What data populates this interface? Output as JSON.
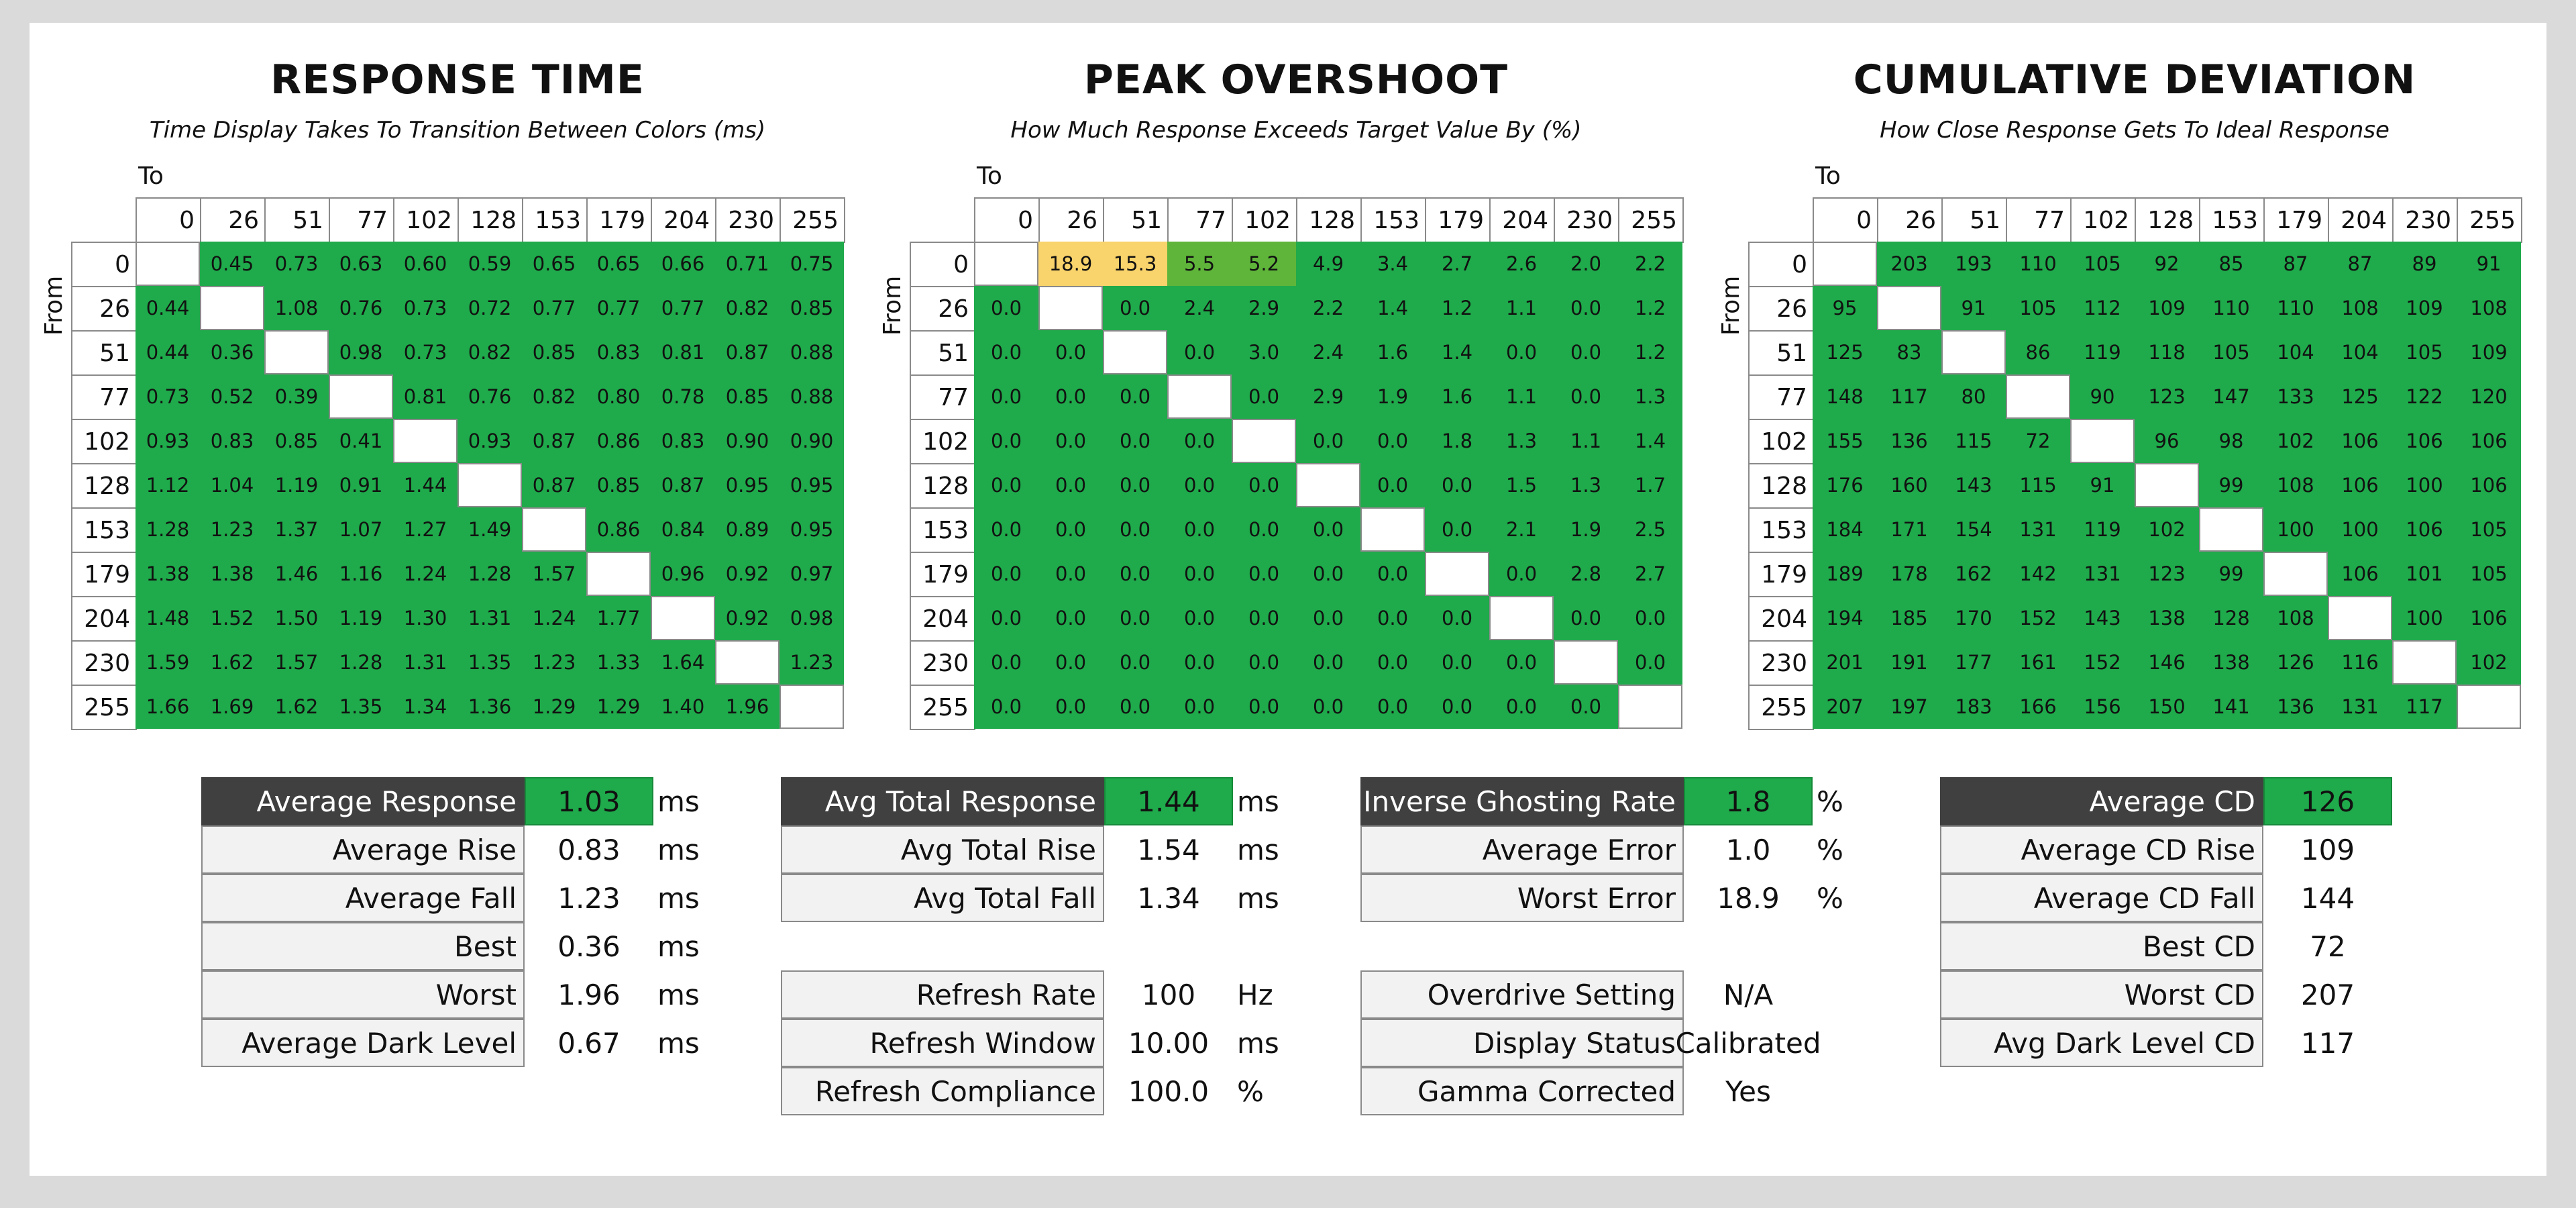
{
  "colors": {
    "green": "#1faa4b",
    "diagonal": "#ffffff",
    "orange": "#f7c04a",
    "light_orange": "#f9d36b",
    "label_dark": "#404040"
  },
  "chart_data": [
    {
      "type": "heatmap",
      "title": "RESPONSE TIME",
      "subtitle": "Time Display Takes To Transition Between Colors (ms)",
      "xlabel": "To",
      "ylabel": "From",
      "categories": [
        "0",
        "26",
        "51",
        "77",
        "102",
        "128",
        "153",
        "179",
        "204",
        "230",
        "255"
      ],
      "rows": [
        [
          "",
          "0.45",
          "0.73",
          "0.63",
          "0.60",
          "0.59",
          "0.65",
          "0.65",
          "0.66",
          "0.71",
          "0.75"
        ],
        [
          "0.44",
          "",
          "1.08",
          "0.76",
          "0.73",
          "0.72",
          "0.77",
          "0.77",
          "0.77",
          "0.82",
          "0.85"
        ],
        [
          "0.44",
          "0.36",
          "",
          "0.98",
          "0.73",
          "0.82",
          "0.85",
          "0.83",
          "0.81",
          "0.87",
          "0.88"
        ],
        [
          "0.73",
          "0.52",
          "0.39",
          "",
          "0.81",
          "0.76",
          "0.82",
          "0.80",
          "0.78",
          "0.85",
          "0.88"
        ],
        [
          "0.93",
          "0.83",
          "0.85",
          "0.41",
          "",
          "0.93",
          "0.87",
          "0.86",
          "0.83",
          "0.90",
          "0.90"
        ],
        [
          "1.12",
          "1.04",
          "1.19",
          "0.91",
          "1.44",
          "",
          "0.87",
          "0.85",
          "0.87",
          "0.95",
          "0.95"
        ],
        [
          "1.28",
          "1.23",
          "1.37",
          "1.07",
          "1.27",
          "1.49",
          "",
          "0.86",
          "0.84",
          "0.89",
          "0.95"
        ],
        [
          "1.38",
          "1.38",
          "1.46",
          "1.16",
          "1.24",
          "1.28",
          "1.57",
          "",
          "0.96",
          "0.92",
          "0.97"
        ],
        [
          "1.48",
          "1.52",
          "1.50",
          "1.19",
          "1.30",
          "1.31",
          "1.24",
          "1.77",
          "",
          "0.92",
          "0.98"
        ],
        [
          "1.59",
          "1.62",
          "1.57",
          "1.28",
          "1.31",
          "1.35",
          "1.23",
          "1.33",
          "1.64",
          "",
          "1.23"
        ],
        [
          "1.66",
          "1.69",
          "1.62",
          "1.35",
          "1.34",
          "1.36",
          "1.29",
          "1.29",
          "1.40",
          "1.96",
          ""
        ]
      ]
    },
    {
      "type": "heatmap",
      "title": "PEAK OVERSHOOT",
      "subtitle": "How Much Response Exceeds Target Value By (%)",
      "xlabel": "To",
      "ylabel": "From",
      "categories": [
        "0",
        "26",
        "51",
        "77",
        "102",
        "128",
        "153",
        "179",
        "204",
        "230",
        "255"
      ],
      "rows": [
        [
          "",
          "18.9",
          "15.3",
          "5.5",
          "5.2",
          "4.9",
          "3.4",
          "2.7",
          "2.6",
          "2.0",
          "2.2"
        ],
        [
          "0.0",
          "",
          "0.0",
          "2.4",
          "2.9",
          "2.2",
          "1.4",
          "1.2",
          "1.1",
          "0.0",
          "1.2"
        ],
        [
          "0.0",
          "0.0",
          "",
          "0.0",
          "3.0",
          "2.4",
          "1.6",
          "1.4",
          "0.0",
          "0.0",
          "1.2"
        ],
        [
          "0.0",
          "0.0",
          "0.0",
          "",
          "0.0",
          "2.9",
          "1.9",
          "1.6",
          "1.1",
          "0.0",
          "1.3"
        ],
        [
          "0.0",
          "0.0",
          "0.0",
          "0.0",
          "",
          "0.0",
          "0.0",
          "1.8",
          "1.3",
          "1.1",
          "1.4"
        ],
        [
          "0.0",
          "0.0",
          "0.0",
          "0.0",
          "0.0",
          "",
          "0.0",
          "0.0",
          "1.5",
          "1.3",
          "1.7"
        ],
        [
          "0.0",
          "0.0",
          "0.0",
          "0.0",
          "0.0",
          "0.0",
          "",
          "0.0",
          "2.1",
          "1.9",
          "2.5"
        ],
        [
          "0.0",
          "0.0",
          "0.0",
          "0.0",
          "0.0",
          "0.0",
          "0.0",
          "",
          "0.0",
          "2.8",
          "2.7"
        ],
        [
          "0.0",
          "0.0",
          "0.0",
          "0.0",
          "0.0",
          "0.0",
          "0.0",
          "0.0",
          "",
          "0.0",
          "0.0"
        ],
        [
          "0.0",
          "0.0",
          "0.0",
          "0.0",
          "0.0",
          "0.0",
          "0.0",
          "0.0",
          "0.0",
          "",
          "0.0"
        ],
        [
          "0.0",
          "0.0",
          "0.0",
          "0.0",
          "0.0",
          "0.0",
          "0.0",
          "0.0",
          "0.0",
          "0.0",
          ""
        ]
      ]
    },
    {
      "type": "heatmap",
      "title": "CUMULATIVE DEVIATION",
      "subtitle": "How Close Response Gets To Ideal Response",
      "xlabel": "To",
      "ylabel": "From",
      "categories": [
        "0",
        "26",
        "51",
        "77",
        "102",
        "128",
        "153",
        "179",
        "204",
        "230",
        "255"
      ],
      "rows": [
        [
          "",
          "203",
          "193",
          "110",
          "105",
          "92",
          "85",
          "87",
          "87",
          "89",
          "91"
        ],
        [
          "95",
          "",
          "91",
          "105",
          "112",
          "109",
          "110",
          "110",
          "108",
          "109",
          "108"
        ],
        [
          "125",
          "83",
          "",
          "86",
          "119",
          "118",
          "105",
          "104",
          "104",
          "105",
          "109"
        ],
        [
          "148",
          "117",
          "80",
          "",
          "90",
          "123",
          "147",
          "133",
          "125",
          "122",
          "120"
        ],
        [
          "155",
          "136",
          "115",
          "72",
          "",
          "96",
          "98",
          "102",
          "106",
          "106",
          "106"
        ],
        [
          "176",
          "160",
          "143",
          "115",
          "91",
          "",
          "99",
          "108",
          "106",
          "100",
          "106"
        ],
        [
          "184",
          "171",
          "154",
          "131",
          "119",
          "102",
          "",
          "100",
          "100",
          "106",
          "105"
        ],
        [
          "189",
          "178",
          "162",
          "142",
          "131",
          "123",
          "99",
          "",
          "106",
          "101",
          "105"
        ],
        [
          "194",
          "185",
          "170",
          "152",
          "143",
          "138",
          "128",
          "108",
          "",
          "100",
          "106"
        ],
        [
          "201",
          "191",
          "177",
          "161",
          "152",
          "146",
          "138",
          "126",
          "116",
          "",
          "102"
        ],
        [
          "207",
          "197",
          "183",
          "166",
          "156",
          "150",
          "141",
          "136",
          "131",
          "117",
          ""
        ]
      ]
    }
  ],
  "stats": [
    {
      "rows": [
        {
          "label": "Average Response",
          "value": "1.03",
          "unit": "ms",
          "highlight": true
        },
        {
          "label": "Average Rise",
          "value": "0.83",
          "unit": "ms"
        },
        {
          "label": "Average Fall",
          "value": "1.23",
          "unit": "ms"
        },
        {
          "label": "Best",
          "value": "0.36",
          "unit": "ms"
        },
        {
          "label": "Worst",
          "value": "1.96",
          "unit": "ms"
        },
        {
          "label": "Average Dark Level",
          "value": "0.67",
          "unit": "ms"
        }
      ]
    },
    {
      "rows": [
        {
          "label": "Avg Total Response",
          "value": "1.44",
          "unit": "ms",
          "highlight": true
        },
        {
          "label": "Avg Total Rise",
          "value": "1.54",
          "unit": "ms"
        },
        {
          "label": "Avg Total Fall",
          "value": "1.34",
          "unit": "ms"
        },
        null,
        {
          "label": "Refresh Rate",
          "value": "100",
          "unit": "Hz"
        },
        {
          "label": "Refresh Window",
          "value": "10.00",
          "unit": "ms"
        },
        {
          "label": "Refresh Compliance",
          "value": "100.0",
          "unit": "%"
        }
      ]
    },
    {
      "rows": [
        {
          "label": "Inverse Ghosting Rate",
          "value": "1.8",
          "unit": "%",
          "highlight": true
        },
        {
          "label": "Average Error",
          "value": "1.0",
          "unit": "%"
        },
        {
          "label": "Worst Error",
          "value": "18.9",
          "unit": "%"
        },
        null,
        {
          "label": "Overdrive Setting",
          "value": "N/A",
          "unit": ""
        },
        {
          "label": "Display Status",
          "value": "Calibrated",
          "unit": ""
        },
        {
          "label": "Gamma Corrected",
          "value": "Yes",
          "unit": ""
        }
      ]
    },
    {
      "rows": [
        {
          "label": "Average CD",
          "value": "126",
          "unit": "",
          "highlight": true
        },
        {
          "label": "Average CD Rise",
          "value": "109",
          "unit": ""
        },
        {
          "label": "Average CD Fall",
          "value": "144",
          "unit": ""
        },
        {
          "label": "Best CD",
          "value": "72",
          "unit": ""
        },
        {
          "label": "Worst CD",
          "value": "207",
          "unit": ""
        },
        {
          "label": "Avg Dark Level CD",
          "value": "117",
          "unit": ""
        }
      ]
    }
  ]
}
